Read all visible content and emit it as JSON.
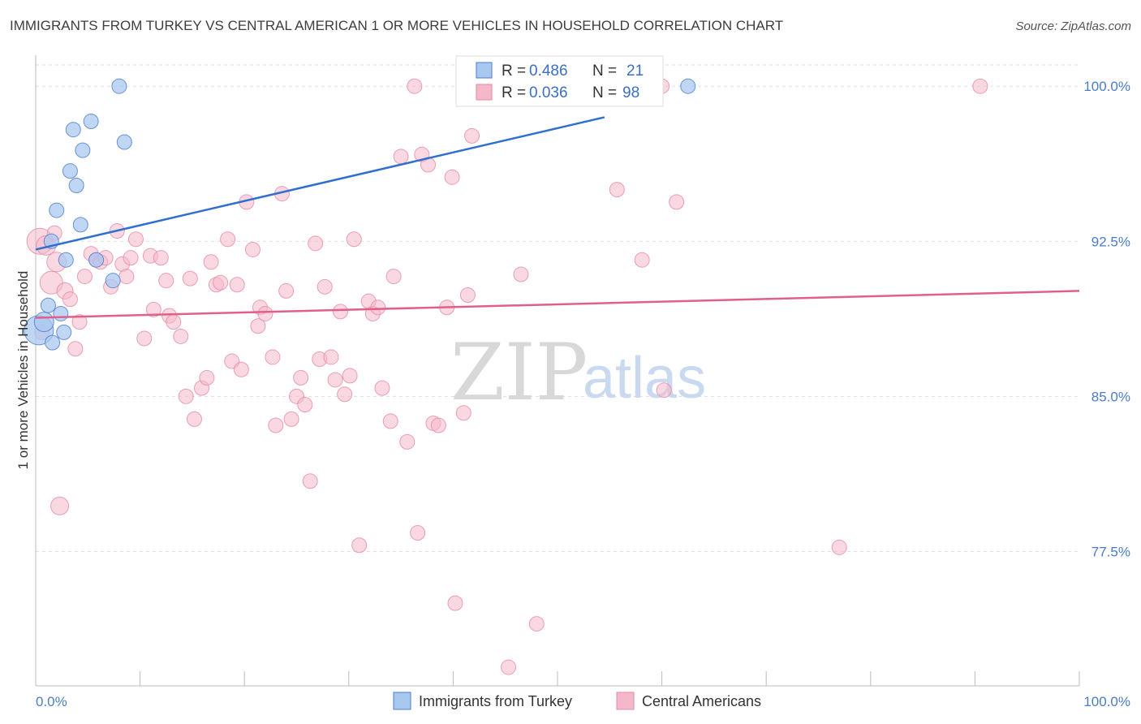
{
  "title": "IMMIGRANTS FROM TURKEY VS CENTRAL AMERICAN 1 OR MORE VEHICLES IN HOUSEHOLD CORRELATION CHART",
  "source": "Source: ZipAtlas.com",
  "watermark": {
    "zip": "ZIP",
    "atlas": "atlas"
  },
  "colors": {
    "turkey_fill": "#a9c8f0",
    "turkey_stroke": "#4a7cc9",
    "turkey_line": "#2f6fcf",
    "central_fill": "#f5b8ca",
    "central_stroke": "#e58aa6",
    "central_line": "#e0608a",
    "grid": "#dddddd",
    "tick_label": "#4a7cc9"
  },
  "legend_top": [
    {
      "r_label": "R =",
      "r_value": "0.486",
      "n_label": "N =",
      "n_value": "21",
      "series": "turkey"
    },
    {
      "r_label": "R =",
      "r_value": "0.036",
      "n_label": "N =",
      "n_value": "98",
      "series": "central"
    }
  ],
  "chart_data": {
    "type": "scatter",
    "title": "IMMIGRANTS FROM TURKEY VS CENTRAL AMERICAN 1 OR MORE VEHICLES IN HOUSEHOLD CORRELATION CHART",
    "xlabel": "",
    "ylabel": "1 or more Vehicles in Household",
    "xlim": [
      0,
      100
    ],
    "ylim": [
      71,
      101.5
    ],
    "x_tick_labels": [
      "0.0%",
      "100.0%"
    ],
    "y_ticks": [
      77.5,
      85.0,
      92.5,
      100.0
    ],
    "y_tick_labels": [
      "77.5%",
      "85.0%",
      "92.5%",
      "100.0%"
    ],
    "grid": true,
    "legend_position": "bottom-center",
    "series": [
      {
        "name": "Immigrants from Turkey",
        "color": "#a9c8f0",
        "points": [
          [
            0.3,
            88.2,
            18
          ],
          [
            0.8,
            88.6,
            12
          ],
          [
            1.2,
            89.4,
            9
          ],
          [
            1.6,
            87.6,
            9
          ],
          [
            1.5,
            92.5,
            9
          ],
          [
            2.0,
            94.0,
            9
          ],
          [
            2.4,
            89.0,
            9
          ],
          [
            2.7,
            88.1,
            9
          ],
          [
            2.9,
            91.6,
            9
          ],
          [
            3.3,
            95.9,
            9
          ],
          [
            3.6,
            97.9,
            9
          ],
          [
            3.9,
            95.2,
            9
          ],
          [
            4.3,
            93.3,
            9
          ],
          [
            4.5,
            96.9,
            9
          ],
          [
            5.3,
            98.3,
            9
          ],
          [
            5.8,
            91.6,
            9
          ],
          [
            7.4,
            90.6,
            9
          ],
          [
            8.0,
            100.0,
            9
          ],
          [
            8.5,
            97.3,
            9
          ],
          [
            54.5,
            100.0,
            9
          ],
          [
            62.5,
            100.0,
            9
          ]
        ],
        "trendline": {
          "x": [
            0.0,
            54.5
          ],
          "y": [
            92.1,
            98.5
          ]
        }
      },
      {
        "name": "Central Americans",
        "color": "#f5b8ca",
        "points": [
          [
            0.4,
            92.5,
            16
          ],
          [
            1.0,
            92.3,
            12
          ],
          [
            1.5,
            90.5,
            14
          ],
          [
            2.0,
            91.5,
            12
          ],
          [
            2.3,
            79.7,
            11
          ],
          [
            2.8,
            90.1,
            10
          ],
          [
            3.3,
            89.7,
            9
          ],
          [
            3.8,
            87.3,
            9
          ],
          [
            4.2,
            88.6,
            9
          ],
          [
            4.7,
            90.8,
            9
          ],
          [
            5.3,
            91.9,
            9
          ],
          [
            5.8,
            91.6,
            9
          ],
          [
            6.2,
            91.5,
            9
          ],
          [
            6.7,
            91.7,
            9
          ],
          [
            7.2,
            90.3,
            9
          ],
          [
            7.8,
            93.0,
            9
          ],
          [
            8.3,
            91.4,
            9
          ],
          [
            8.7,
            90.8,
            9
          ],
          [
            9.1,
            91.7,
            9
          ],
          [
            9.6,
            92.6,
            9
          ],
          [
            10.4,
            87.8,
            9
          ],
          [
            11.0,
            91.8,
            9
          ],
          [
            11.3,
            89.2,
            9
          ],
          [
            12.0,
            91.7,
            9
          ],
          [
            12.5,
            90.6,
            9
          ],
          [
            12.8,
            88.9,
            9
          ],
          [
            13.2,
            88.6,
            9
          ],
          [
            13.9,
            87.9,
            9
          ],
          [
            14.4,
            85.0,
            9
          ],
          [
            14.8,
            90.7,
            9
          ],
          [
            15.2,
            83.9,
            9
          ],
          [
            15.9,
            85.4,
            9
          ],
          [
            16.4,
            85.9,
            9
          ],
          [
            16.8,
            91.5,
            9
          ],
          [
            17.3,
            90.4,
            9
          ],
          [
            17.7,
            90.5,
            9
          ],
          [
            18.4,
            92.6,
            9
          ],
          [
            18.8,
            86.7,
            9
          ],
          [
            19.3,
            90.4,
            9
          ],
          [
            19.7,
            86.3,
            9
          ],
          [
            20.2,
            94.4,
            9
          ],
          [
            20.8,
            92.1,
            9
          ],
          [
            21.3,
            88.4,
            9
          ],
          [
            21.5,
            89.3,
            9
          ],
          [
            22.0,
            89.0,
            9
          ],
          [
            22.7,
            86.9,
            9
          ],
          [
            23.0,
            83.6,
            9
          ],
          [
            23.6,
            94.8,
            9
          ],
          [
            24.0,
            90.1,
            9
          ],
          [
            24.5,
            83.9,
            9
          ],
          [
            25.0,
            85.0,
            9
          ],
          [
            25.4,
            85.9,
            9
          ],
          [
            25.8,
            84.6,
            9
          ],
          [
            26.3,
            80.9,
            9
          ],
          [
            26.8,
            92.4,
            9
          ],
          [
            27.2,
            86.8,
            9
          ],
          [
            27.7,
            90.3,
            9
          ],
          [
            28.3,
            86.9,
            9
          ],
          [
            28.7,
            85.8,
            9
          ],
          [
            29.2,
            89.1,
            9
          ],
          [
            29.6,
            85.1,
            9
          ],
          [
            30.1,
            86.0,
            9
          ],
          [
            30.5,
            92.6,
            9
          ],
          [
            31.0,
            77.8,
            9
          ],
          [
            31.9,
            89.6,
            9
          ],
          [
            32.3,
            89.0,
            9
          ],
          [
            32.8,
            89.3,
            9
          ],
          [
            33.2,
            85.4,
            9
          ],
          [
            34.0,
            83.8,
            9
          ],
          [
            34.3,
            90.8,
            9
          ],
          [
            35.0,
            96.6,
            9
          ],
          [
            35.6,
            82.8,
            9
          ],
          [
            36.3,
            100.0,
            9
          ],
          [
            36.6,
            78.4,
            9
          ],
          [
            37.0,
            96.7,
            9
          ],
          [
            37.6,
            96.2,
            9
          ],
          [
            38.1,
            83.7,
            9
          ],
          [
            38.6,
            83.6,
            9
          ],
          [
            39.4,
            89.3,
            9
          ],
          [
            39.9,
            95.6,
            9
          ],
          [
            40.2,
            75.0,
            9
          ],
          [
            41.0,
            84.2,
            9
          ],
          [
            41.4,
            89.9,
            9
          ],
          [
            41.8,
            97.6,
            9
          ],
          [
            45.3,
            71.9,
            9
          ],
          [
            46.5,
            90.9,
            9
          ],
          [
            47.0,
            100.0,
            9
          ],
          [
            48.0,
            74.0,
            9
          ],
          [
            50.0,
            100.0,
            9
          ],
          [
            55.7,
            95.0,
            9
          ],
          [
            58.1,
            91.6,
            9
          ],
          [
            60.2,
            85.3,
            9
          ],
          [
            60.0,
            100.0,
            9
          ],
          [
            61.4,
            94.4,
            9
          ],
          [
            77.0,
            77.7,
            9
          ],
          [
            90.5,
            100.0,
            9
          ],
          [
            0.6,
            88.1,
            9
          ],
          [
            1.8,
            92.9,
            9
          ]
        ],
        "trendline": {
          "x": [
            0.0,
            100.0
          ],
          "y": [
            88.8,
            90.1
          ]
        }
      }
    ]
  },
  "bottom_legend": [
    {
      "label": "Immigrants from Turkey",
      "series": "turkey"
    },
    {
      "label": "Central Americans",
      "series": "central"
    }
  ]
}
